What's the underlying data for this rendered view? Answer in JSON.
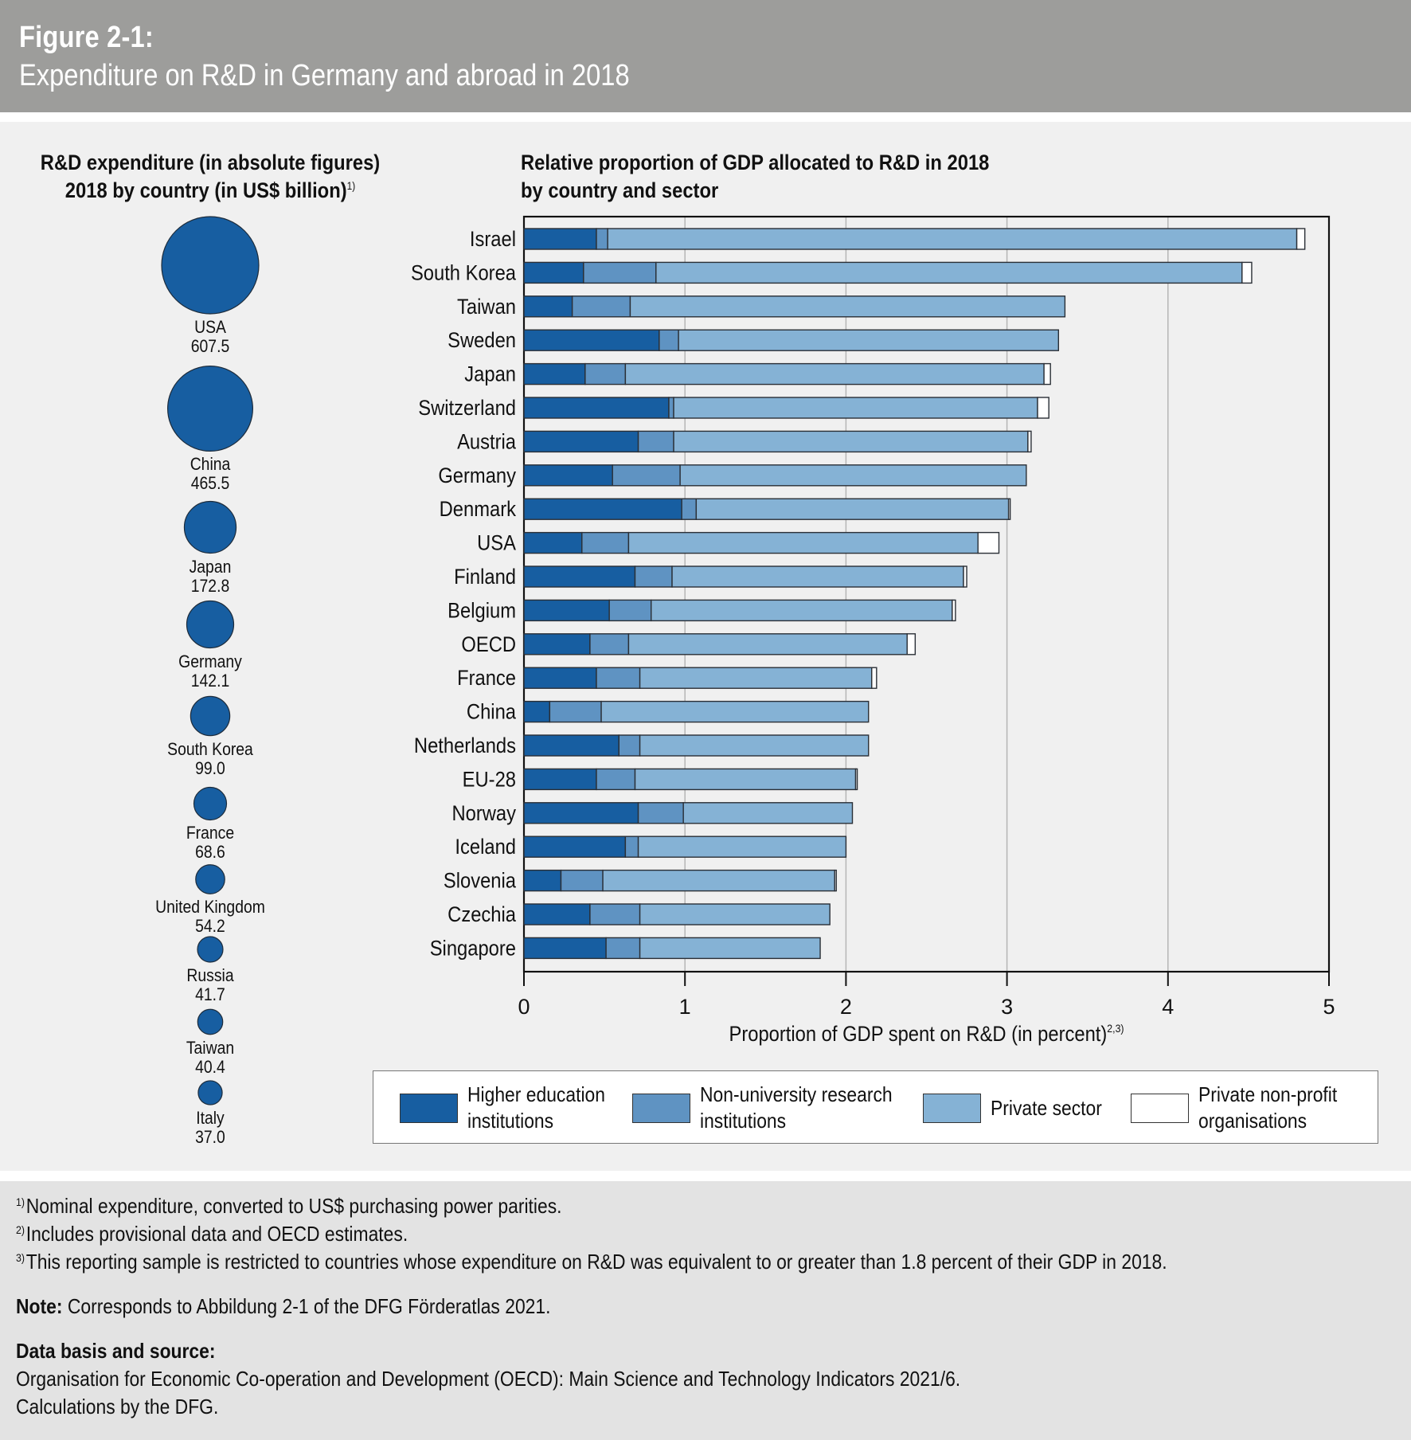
{
  "header": {
    "figure_label": "Figure 2-1:",
    "title": "Expenditure on R&D in Germany and abroad in 2018"
  },
  "left_panel": {
    "title_line1": "R&D expenditure (in absolute figures)",
    "title_line2": "2018 by country (in US$ billion)",
    "title_sup": "1)"
  },
  "right_panel": {
    "title_line1": "Relative proportion of GDP allocated to R&D in 2018",
    "title_line2": "by country and sector"
  },
  "colors": {
    "higher_education": "#175ea1",
    "non_university": "#5f93c2",
    "private_sector": "#85b2d5",
    "private_non_profit": "#ffffff",
    "bubble": "#175ea1"
  },
  "chart_data": [
    {
      "type": "bubble",
      "title": "R&D expenditure (in absolute figures) 2018 by country (in US$ billion)",
      "unit": "US$ billion",
      "items": [
        {
          "country": "USA",
          "value": 607.5,
          "label": "607.5"
        },
        {
          "country": "China",
          "value": 465.5,
          "label": "465.5"
        },
        {
          "country": "Japan",
          "value": 172.8,
          "label": "172.8"
        },
        {
          "country": "Germany",
          "value": 142.1,
          "label": "142.1"
        },
        {
          "country": "South Korea",
          "value": 99.0,
          "label": "99.0"
        },
        {
          "country": "France",
          "value": 68.6,
          "label": "68.6"
        },
        {
          "country": "United Kingdom",
          "value": 54.2,
          "label": "54.2"
        },
        {
          "country": "Russia",
          "value": 41.7,
          "label": "41.7"
        },
        {
          "country": "Taiwan",
          "value": 40.4,
          "label": "40.4"
        },
        {
          "country": "Italy",
          "value": 37.0,
          "label": "37.0"
        }
      ]
    },
    {
      "type": "bar",
      "orientation": "horizontal",
      "stacked": true,
      "title": "Relative proportion of GDP allocated to R&D in 2018 by country and sector",
      "xlabel": "Proportion of GDP spent on R&D (in percent)",
      "xlabel_sup": "2,3)",
      "xlim": [
        0,
        5
      ],
      "xticks": [
        "0",
        "1",
        "2",
        "3",
        "4",
        "5"
      ],
      "grid": true,
      "legend_position": "bottom",
      "categories": [
        "Israel",
        "South Korea",
        "Taiwan",
        "Sweden",
        "Japan",
        "Switzerland",
        "Austria",
        "Germany",
        "Denmark",
        "USA",
        "Finland",
        "Belgium",
        "OECD",
        "France",
        "China",
        "Netherlands",
        "EU-28",
        "Norway",
        "Iceland",
        "Slovenia",
        "Czechia",
        "Singapore"
      ],
      "series": [
        {
          "name": "Higher education institutions",
          "color": "#175ea1",
          "values": [
            0.45,
            0.37,
            0.3,
            0.84,
            0.38,
            0.9,
            0.71,
            0.55,
            0.98,
            0.36,
            0.69,
            0.53,
            0.41,
            0.45,
            0.16,
            0.59,
            0.45,
            0.71,
            0.63,
            0.23,
            0.41,
            0.51
          ]
        },
        {
          "name": "Non-university research institutions",
          "color": "#5f93c2",
          "values": [
            0.07,
            0.45,
            0.36,
            0.12,
            0.25,
            0.03,
            0.22,
            0.42,
            0.09,
            0.29,
            0.23,
            0.26,
            0.24,
            0.27,
            0.32,
            0.13,
            0.24,
            0.28,
            0.08,
            0.26,
            0.31,
            0.21
          ]
        },
        {
          "name": "Private sector",
          "color": "#85b2d5",
          "values": [
            4.28,
            3.64,
            2.7,
            2.36,
            2.6,
            2.26,
            2.2,
            2.15,
            1.94,
            2.17,
            1.81,
            1.87,
            1.73,
            1.44,
            1.66,
            1.42,
            1.37,
            1.05,
            1.29,
            1.44,
            1.18,
            1.12
          ]
        },
        {
          "name": "Private non-profit organisations",
          "color": "#ffffff",
          "values": [
            0.05,
            0.06,
            0.0,
            0.0,
            0.04,
            0.07,
            0.02,
            0.0,
            0.01,
            0.13,
            0.02,
            0.02,
            0.05,
            0.03,
            0.0,
            0.0,
            0.01,
            0.0,
            0.0,
            0.01,
            0.0,
            0.0
          ]
        }
      ]
    }
  ],
  "legend": [
    {
      "label": "Higher education\ninstitutions",
      "color": "#175ea1"
    },
    {
      "label": "Non-university research\ninstitutions",
      "color": "#5f93c2"
    },
    {
      "label": "Private sector",
      "color": "#85b2d5"
    },
    {
      "label": "Private non-profit\norganisations",
      "color": "#ffffff"
    }
  ],
  "footnotes": [
    {
      "mark": "1)",
      "text": "Nominal expenditure, converted to US$ purchasing power parities."
    },
    {
      "mark": "2)",
      "text": "Includes provisional data and OECD estimates."
    },
    {
      "mark": "3)",
      "text": "This reporting sample is restricted to countries whose expenditure on R&D was equivalent to or greater than 1.8 percent of their GDP in 2018."
    }
  ],
  "note": {
    "label": "Note:",
    "text": " Corresponds to Abbildung 2-1 of the DFG Förderatlas 2021."
  },
  "source": {
    "label": "Data basis and source:",
    "line1": "Organisation for Economic Co-operation and Development (OECD): Main Science and Technology Indicators 2021/6.",
    "line2": "Calculations by the DFG."
  }
}
